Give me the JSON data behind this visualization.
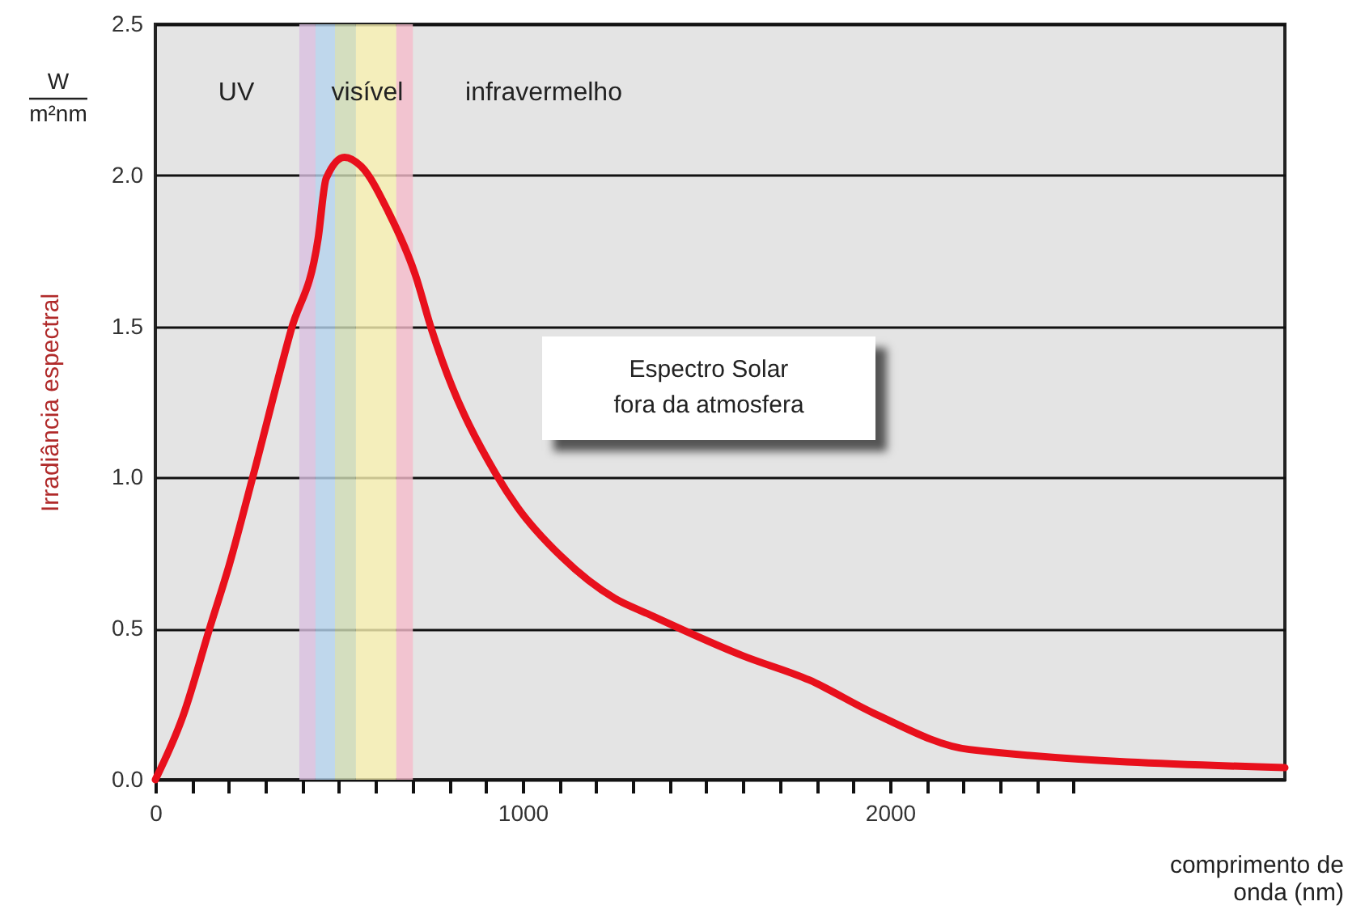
{
  "chart_data": {
    "type": "line",
    "ylabel": "Irradiância espectral",
    "xlabel": "comprimento de onda (nm)",
    "annotations": [
      "W",
      "m²nm",
      "Espectro Solar\nfora da atmosfera",
      "UV",
      "visível",
      "infravermelho"
    ],
    "xlim": [
      0,
      3075
    ],
    "ylim": [
      0,
      2.5
    ],
    "xticks": [
      0,
      {
        "value": 100,
        "label": null
      },
      {
        "value": 200,
        "label": null
      },
      {
        "value": 300,
        "label": null
      },
      {
        "value": 400,
        "label": null
      },
      {
        "value": 500,
        "label": null
      },
      {
        "value": 600,
        "label": null
      },
      {
        "value": 700,
        "label": null
      },
      {
        "value": 800,
        "label": null
      },
      {
        "value": 900,
        "label": null
      },
      1000,
      {
        "value": 1100,
        "label": null
      },
      {
        "value": 1200,
        "label": null
      },
      {
        "value": 1300,
        "label": null
      },
      {
        "value": 1400,
        "label": null
      },
      {
        "value": 1500,
        "label": null
      },
      {
        "value": 1600,
        "label": null
      },
      {
        "value": 1700,
        "label": null
      },
      {
        "value": 1800,
        "label": null
      },
      {
        "value": 1900,
        "label": null
      },
      2000,
      {
        "value": 2100,
        "label": null
      },
      {
        "value": 2200,
        "label": null
      },
      {
        "value": 2300,
        "label": null
      },
      {
        "value": 2400,
        "label": null
      },
      {
        "value": 2500,
        "label": null
      }
    ],
    "yticks": [
      {
        "value": 0,
        "label": "0.0"
      },
      {
        "value": 0.5,
        "label": "0.5"
      },
      {
        "value": 1,
        "label": "1.0"
      },
      {
        "value": 1.5,
        "label": "1.5"
      },
      {
        "value": 2,
        "label": "2.0"
      },
      {
        "value": 2.5,
        "label": "2.5"
      }
    ],
    "grid": "y",
    "bands": [
      {
        "axis": "x",
        "from": 392,
        "to": 436,
        "color": "#d9bfe0"
      },
      {
        "axis": "x",
        "from": 436,
        "to": 489,
        "color": "#b5d3ee"
      },
      {
        "axis": "x",
        "from": 489,
        "to": 546,
        "color": "#cfdcb5"
      },
      {
        "axis": "x",
        "from": 546,
        "to": 656,
        "color": "#f7f0b0"
      },
      {
        "axis": "x",
        "from": 656,
        "to": 701,
        "color": "#f5bccb"
      }
    ],
    "series": [
      {
        "color": "#e8101c",
        "x": [
          0,
          75,
          150,
          201,
          267,
          370,
          443,
          465,
          515,
          560,
          634,
          708,
          752,
          780,
          928,
          987,
          1104,
          1251,
          1339,
          1600,
          1780,
          1956,
          2216,
          3075
        ],
        "values": [
          0,
          0.21,
          0.51,
          0.71,
          1.01,
          1.49,
          1.79,
          1.99,
          2.06,
          2.03,
          1.88,
          1.67,
          1.49,
          1.39,
          1.01,
          0.9,
          0.74,
          0.6,
          0.55,
          0.41,
          0.33,
          0.22,
          0.1,
          0.04
        ]
      }
    ]
  }
}
